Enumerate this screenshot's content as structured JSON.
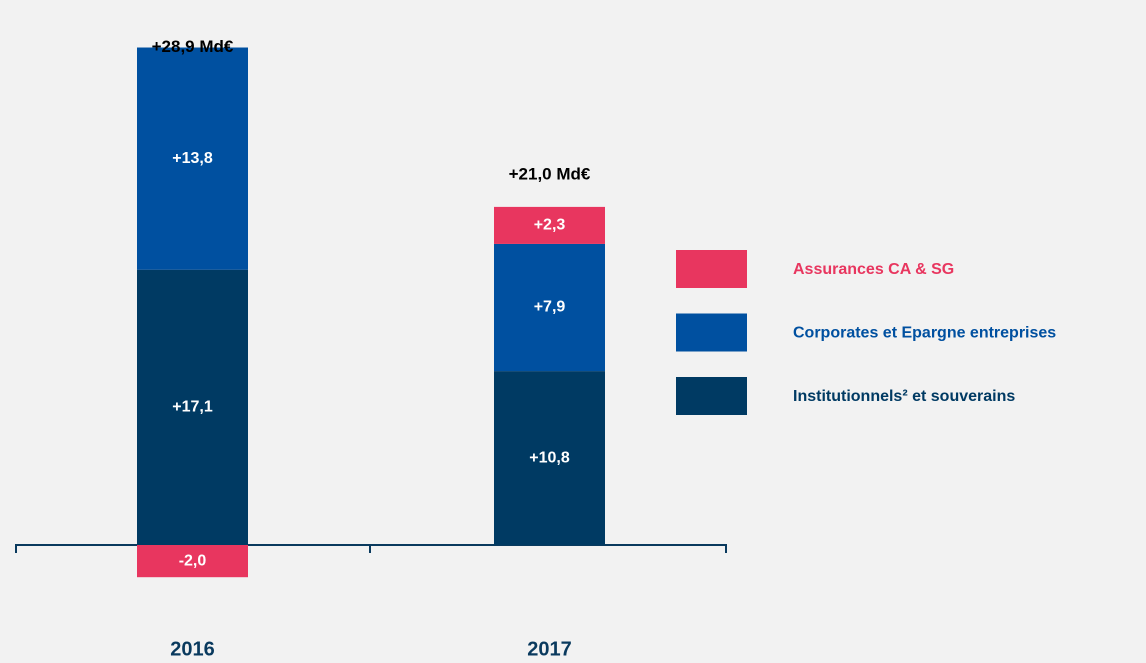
{
  "chart_data": {
    "type": "stacked_bar",
    "categories": [
      "2016",
      "2017"
    ],
    "series": [
      {
        "name": "Institutionnels² et souverains",
        "color": "#003a63",
        "values": [
          17.1,
          10.8
        ],
        "value_labels": [
          "+17,1",
          "+10,8"
        ]
      },
      {
        "name": "Corporates et Epargne entreprises",
        "color": "#0050a0",
        "values": [
          13.8,
          7.9
        ],
        "value_labels": [
          "+13,8",
          "+7,9"
        ]
      },
      {
        "name": "Assurances CA & SG",
        "color": "#e8365f",
        "values": [
          -2.0,
          2.3
        ],
        "value_labels": [
          "-2,0",
          "+2,3"
        ]
      }
    ],
    "totals": [
      28.9,
      21.0
    ],
    "total_labels": [
      "+28,9 Md€",
      "+21,0 Md€"
    ]
  }
}
